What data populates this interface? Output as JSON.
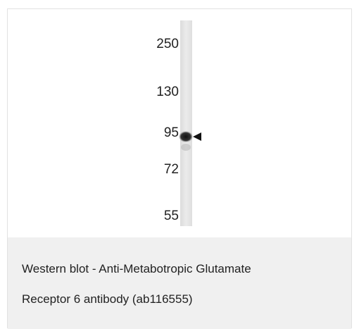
{
  "figure": {
    "markers": [
      "250",
      "130",
      "95",
      "72",
      "55"
    ]
  },
  "caption": {
    "lines": [
      "Western blot - Anti-Metabotropic Glutamate",
      "Receptor 6 antibody (ab116555)"
    ]
  }
}
